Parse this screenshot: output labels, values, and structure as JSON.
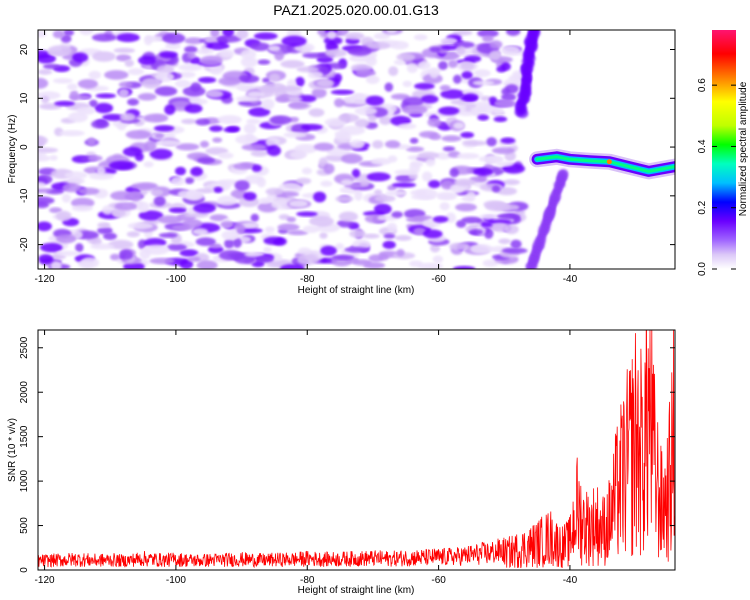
{
  "figure": {
    "title": "PAZ1.2025.020.00.01.G13"
  },
  "chart_data": [
    {
      "type": "heatmap",
      "xlabel": "Height of straight line (km)",
      "ylabel": "Frequency (Hz)",
      "xlim": [
        -121,
        -24
      ],
      "ylim": [
        -25,
        24
      ],
      "xticks": [
        -120,
        -100,
        -80,
        -60,
        -40
      ],
      "yticks": [
        -20,
        -10,
        0,
        10,
        20
      ],
      "colorbar": {
        "label": "Normalized spectral amplitude",
        "ticks": [
          0.0,
          0.2,
          0.4,
          0.6
        ],
        "range": [
          0,
          0.78
        ],
        "colors": [
          "#ffffff",
          "#dcc8f8",
          "#a066ff",
          "#6a00ff",
          "#0000ff",
          "#00bfff",
          "#00ffbf",
          "#00ff00",
          "#bfff00",
          "#ffff00",
          "#ff8000",
          "#ff0000",
          "#ff1470"
        ]
      },
      "bright_band": {
        "description_values": "high amplitude ridge",
        "x": [
          -45,
          -42,
          -40,
          -37,
          -34,
          -31,
          -28,
          -26,
          -24
        ],
        "y": [
          -2.5,
          -2.0,
          -2.5,
          -2.8,
          -3.0,
          -4.0,
          -5.0,
          -4.5,
          -4.0
        ],
        "peak_amplitude": 0.6
      },
      "grid": false
    },
    {
      "type": "line",
      "xlabel": "Height of straight line (km)",
      "ylabel": "SNR (10 * v/v)",
      "xlim": [
        -121,
        -24
      ],
      "ylim": [
        0,
        2700
      ],
      "xticks": [
        -120,
        -100,
        -80,
        -60,
        -40
      ],
      "yticks": [
        0,
        500,
        1000,
        1500,
        2000,
        2500
      ],
      "series": [
        {
          "color": "#ff0000",
          "x": [
            -121,
            -118,
            -115,
            -112,
            -110,
            -108,
            -105,
            -102,
            -100,
            -97,
            -95,
            -92,
            -90,
            -87,
            -85,
            -82,
            -80,
            -77,
            -75,
            -72,
            -70,
            -67,
            -65,
            -62,
            -60,
            -57,
            -55,
            -52,
            -50,
            -48,
            -46,
            -45,
            -44,
            -43,
            -42,
            -41,
            -40,
            -39,
            -38,
            -37,
            -36,
            -35,
            -34,
            -33,
            -32,
            -31,
            -30,
            -29,
            -28,
            -27,
            -26,
            -25,
            -24
          ],
          "values": [
            120,
            130,
            140,
            125,
            135,
            120,
            150,
            130,
            140,
            125,
            130,
            135,
            140,
            130,
            135,
            140,
            150,
            140,
            145,
            150,
            155,
            150,
            160,
            165,
            170,
            180,
            200,
            230,
            260,
            320,
            380,
            420,
            470,
            520,
            430,
            380,
            450,
            1000,
            750,
            680,
            760,
            640,
            780,
            1180,
            1500,
            1750,
            2100,
            1850,
            2650,
            1550,
            1000,
            1250,
            2250
          ]
        }
      ],
      "grid": false
    }
  ]
}
